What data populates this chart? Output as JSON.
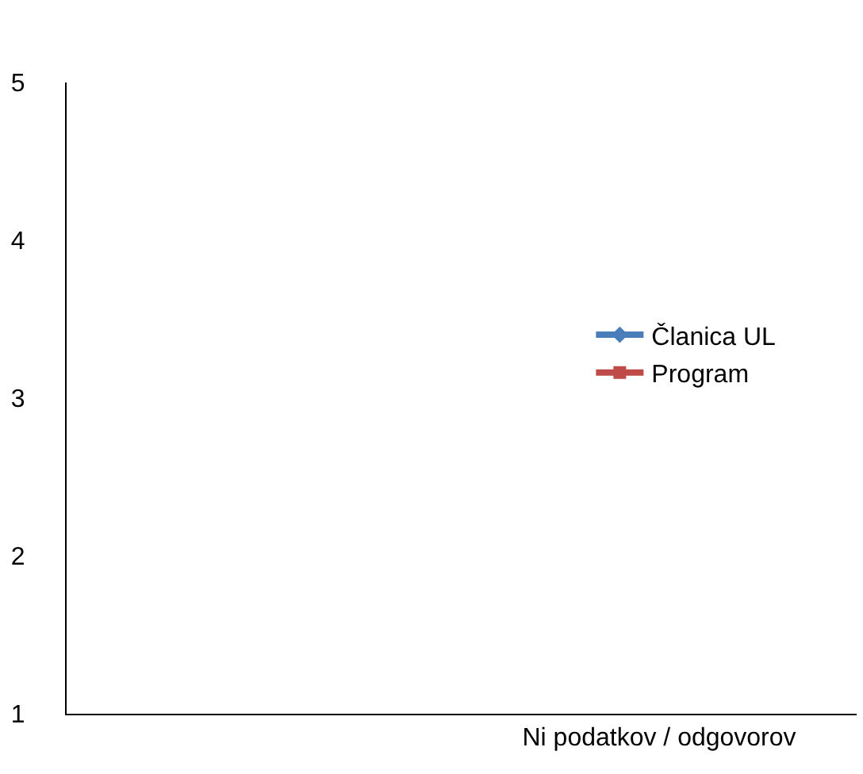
{
  "chart_data": {
    "type": "line",
    "categories": [
      null,
      "Ni podatkov / odgovorov"
    ],
    "series": [
      {
        "name": "Članica UL",
        "color": "#4a7ebb",
        "values": [
          null,
          null
        ],
        "marker": "diamond"
      },
      {
        "name": "Program",
        "color": "#be4b48",
        "values": [
          null,
          null
        ],
        "marker": "square"
      }
    ],
    "ylim": [
      1,
      5
    ],
    "yticks": [
      1,
      2,
      3,
      4,
      5
    ],
    "legend": "right"
  }
}
